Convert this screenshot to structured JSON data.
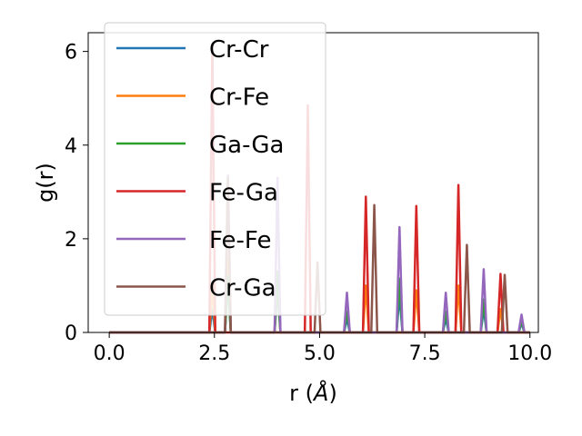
{
  "chart_data": {
    "type": "line",
    "xlabel": "r (Å)",
    "ylabel": "g(r)",
    "xlim": [
      -0.5,
      10.2
    ],
    "ylim": [
      0,
      6.4
    ],
    "xticks": [
      0.0,
      2.5,
      5.0,
      7.5,
      10.0
    ],
    "xtick_labels": [
      "0.0",
      "2.5",
      "5.0",
      "7.5",
      "10.0"
    ],
    "yticks": [
      0,
      2,
      4,
      6
    ],
    "ytick_labels": [
      "0",
      "2",
      "4",
      "6"
    ],
    "legend_position": "upper-left",
    "peak_half_width": 0.07,
    "series": [
      {
        "name": "Cr-Cr",
        "color": "#1f77b4",
        "peaks": [
          [
            2.45,
            0.5
          ],
          [
            2.82,
            1.1
          ],
          [
            4.0,
            0.9
          ],
          [
            5.65,
            0.3
          ],
          [
            6.9,
            0.8
          ],
          [
            8.0,
            0.3
          ],
          [
            8.9,
            0.5
          ],
          [
            9.8,
            0.2
          ]
        ]
      },
      {
        "name": "Cr-Fe",
        "color": "#ff7f0e",
        "peaks": [
          [
            2.45,
            1.0
          ],
          [
            2.82,
            1.6
          ],
          [
            4.0,
            1.2
          ],
          [
            6.1,
            1.0
          ],
          [
            7.3,
            0.9
          ],
          [
            8.3,
            1.0
          ],
          [
            9.3,
            0.5
          ]
        ]
      },
      {
        "name": "Ga-Ga",
        "color": "#2ca02c",
        "peaks": [
          [
            2.82,
            1.2
          ],
          [
            4.0,
            1.3
          ],
          [
            5.65,
            0.45
          ],
          [
            6.9,
            1.15
          ],
          [
            8.0,
            0.45
          ],
          [
            8.9,
            0.7
          ],
          [
            9.8,
            0.25
          ]
        ]
      },
      {
        "name": "Fe-Ga",
        "color": "#d62728",
        "peaks": [
          [
            2.45,
            6.1
          ],
          [
            4.72,
            4.85
          ],
          [
            6.1,
            2.9
          ],
          [
            7.3,
            2.7
          ],
          [
            8.3,
            3.15
          ],
          [
            9.3,
            1.25
          ]
        ]
      },
      {
        "name": "Fe-Fe",
        "color": "#9467bd",
        "peaks": [
          [
            2.82,
            3.35
          ],
          [
            4.0,
            3.3
          ],
          [
            5.65,
            0.85
          ],
          [
            6.9,
            2.25
          ],
          [
            8.0,
            0.85
          ],
          [
            8.9,
            1.35
          ],
          [
            9.8,
            0.38
          ]
        ]
      },
      {
        "name": "Cr-Ga",
        "color": "#8c564b",
        "peaks": [
          [
            2.82,
            3.3
          ],
          [
            4.95,
            1.5
          ],
          [
            6.3,
            2.72
          ],
          [
            8.5,
            1.87
          ],
          [
            9.4,
            1.23
          ]
        ]
      }
    ]
  }
}
